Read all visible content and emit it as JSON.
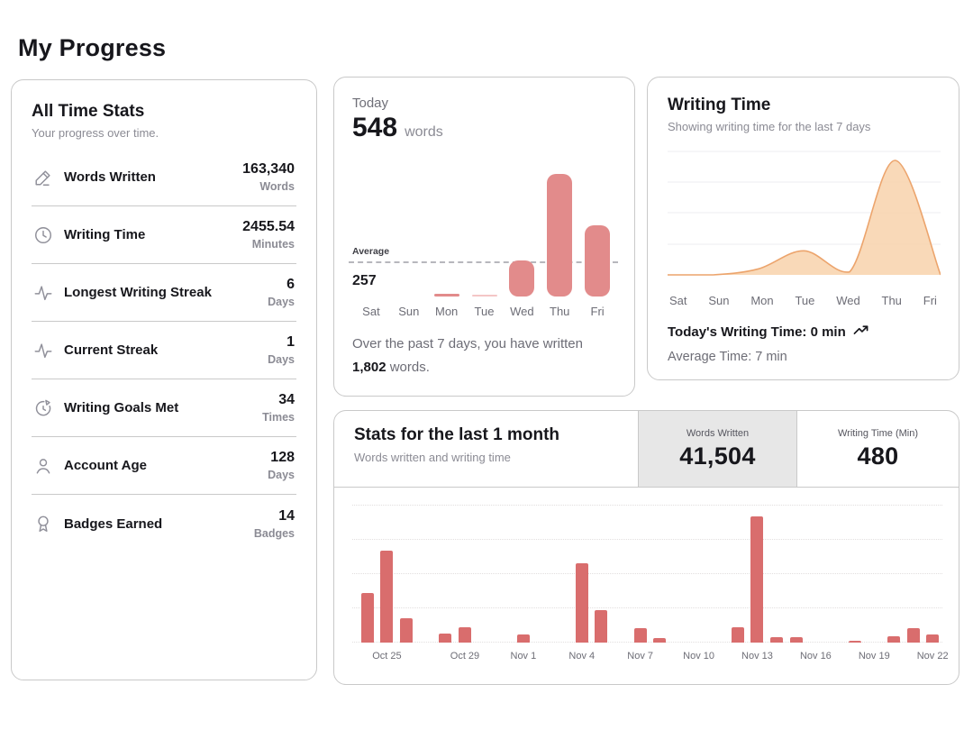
{
  "page": {
    "title": "My Progress"
  },
  "all_time": {
    "title": "All Time Stats",
    "subtitle": "Your progress over time.",
    "rows": [
      {
        "icon": "pencil-icon",
        "label": "Words Written",
        "value": "163,340",
        "unit": "Words"
      },
      {
        "icon": "clock-icon",
        "label": "Writing Time",
        "value": "2455.54",
        "unit": "Minutes"
      },
      {
        "icon": "activity-icon",
        "label": "Longest Writing Streak",
        "value": "6",
        "unit": "Days"
      },
      {
        "icon": "activity-icon",
        "label": "Current Streak",
        "value": "1",
        "unit": "Days"
      },
      {
        "icon": "goal-icon",
        "label": "Writing Goals Met",
        "value": "34",
        "unit": "Times"
      },
      {
        "icon": "user-icon",
        "label": "Account Age",
        "value": "128",
        "unit": "Days"
      },
      {
        "icon": "badge-icon",
        "label": "Badges Earned",
        "value": "14",
        "unit": "Badges"
      }
    ]
  },
  "today": {
    "label": "Today",
    "value": "548",
    "unit": "words",
    "footer_prefix": "Over the past 7 days, you have written ",
    "footer_bold": "1,802",
    "footer_suffix": " words."
  },
  "writing_time": {
    "title": "Writing Time",
    "subtitle": "Showing writing time for the last 7 days",
    "today_line": "Today's Writing Time: 0 min",
    "average_line": "Average Time: 7 min"
  },
  "month": {
    "title": "Stats for the last 1 month",
    "subtitle": "Words written and writing time",
    "tabs": [
      {
        "label": "Words Written",
        "value": "41,504",
        "selected": true
      },
      {
        "label": "Writing Time (Min)",
        "value": "480",
        "selected": false
      }
    ]
  },
  "chart_data": [
    {
      "id": "today-words-last-7-days",
      "type": "bar",
      "title": "Words written per day, last 7 days",
      "categories": [
        "Sat",
        "Sun",
        "Mon",
        "Tue",
        "Wed",
        "Thu",
        "Fri"
      ],
      "values": [
        0,
        0,
        20,
        8,
        280,
        946,
        548
      ],
      "total_label": "1,802",
      "average_label": "Average",
      "average_value": 257,
      "bar_color": "#e28b8b",
      "light_bar_color": "#f4c6c6",
      "light_bars": [
        3
      ],
      "grid": false,
      "ylim": [
        0,
        1100
      ]
    },
    {
      "id": "writing-time-last-7-days",
      "type": "area",
      "title": "Writing time per day (minutes), last 7 days",
      "categories": [
        "Sat",
        "Sun",
        "Mon",
        "Tue",
        "Wed",
        "Thu",
        "Fri"
      ],
      "values": [
        0,
        0,
        2,
        8,
        1,
        38,
        0
      ],
      "today_value_min": 0,
      "average_value_min": 7,
      "fill": "#f8d2ab",
      "stroke": "#eca46c",
      "grid": true,
      "ylim": [
        0,
        41
      ]
    },
    {
      "id": "month-words-written",
      "type": "bar",
      "title": "Words written per day, last 1 month",
      "categories": [
        "Oct 24",
        "Oct 25",
        "Oct 26",
        "Oct 27",
        "Oct 28",
        "Oct 29",
        "Oct 30",
        "Oct 31",
        "Nov 1",
        "Nov 2",
        "Nov 3",
        "Nov 4",
        "Nov 5",
        "Nov 6",
        "Nov 7",
        "Nov 8",
        "Nov 9",
        "Nov 10",
        "Nov 11",
        "Nov 12",
        "Nov 13",
        "Nov 14",
        "Nov 15",
        "Nov 16",
        "Nov 17",
        "Nov 18",
        "Nov 19",
        "Nov 20",
        "Nov 21",
        "Nov 22"
      ],
      "values": [
        4050,
        7450,
        2000,
        0,
        750,
        1225,
        0,
        0,
        675,
        0,
        0,
        6425,
        2625,
        0,
        1175,
        375,
        0,
        0,
        0,
        1225,
        10250,
        450,
        425,
        0,
        0,
        79,
        0,
        500,
        1150,
        675
      ],
      "total": 41504,
      "tick_labels": [
        "Oct 25",
        "Oct 29",
        "Nov 1",
        "Nov 4",
        "Nov 7",
        "Nov 10",
        "Nov 13",
        "Nov 16",
        "Nov 19",
        "Nov 22"
      ],
      "tick_indices": [
        1,
        5,
        8,
        11,
        14,
        17,
        20,
        23,
        26,
        29
      ],
      "bar_color": "#d96d6d",
      "grid": true,
      "ylim": [
        0,
        11100
      ]
    }
  ]
}
